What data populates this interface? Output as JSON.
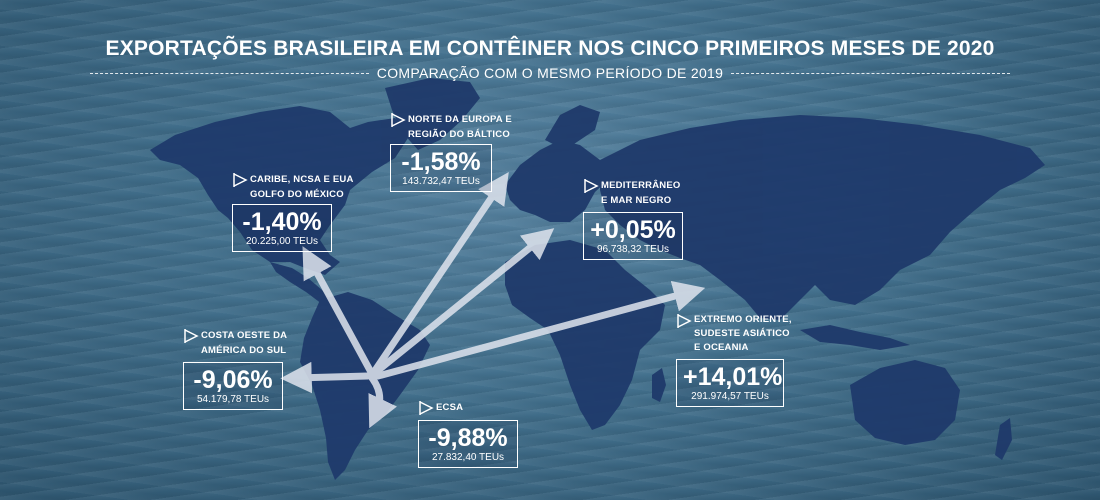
{
  "title": "EXPORTAÇÕES BRASILEIRA EM CONTÊINER NOS CINCO PRIMEIROS MESES DE 2020",
  "subtitle": "COMPARAÇÃO COM O MESMO PERÍODO DE 2019",
  "colors": {
    "sea": "#42708d",
    "land": "#1f3a6b",
    "text": "#ffffff",
    "arrow": "#dfe4ee"
  },
  "regions": [
    {
      "name_line1": "CARIBE, NCSA E EUA",
      "name_line2": "GOLFO DO MÉXICO",
      "pct": "-1,40%",
      "teus": "20.225,00 TEUs"
    },
    {
      "name_line1": "NORTE DA EUROPA E",
      "name_line2": "REGIÃO DO BÁLTICO",
      "pct": "-1,58%",
      "teus": "143.732,47 TEUs"
    },
    {
      "name_line1": "MEDITERRÂNEO",
      "name_line2": "E MAR NEGRO",
      "pct": "+0,05%",
      "teus": "96.738,32 TEUs"
    },
    {
      "name_line1": "COSTA OESTE DA",
      "name_line2": "AMÉRICA DO SUL",
      "pct": "-9,06%",
      "teus": "54.179,78 TEUs"
    },
    {
      "name_line1": "ECSA",
      "name_line2": "",
      "pct": "-9,88%",
      "teus": "27.832,40 TEUs"
    },
    {
      "name_line1": "EXTREMO ORIENTE,",
      "name_line2": "SUDESTE ASIÁTICO",
      "name_line3": "E OCEANIA",
      "pct": "+14,01%",
      "teus": "291.974,57 TEUs"
    }
  ]
}
